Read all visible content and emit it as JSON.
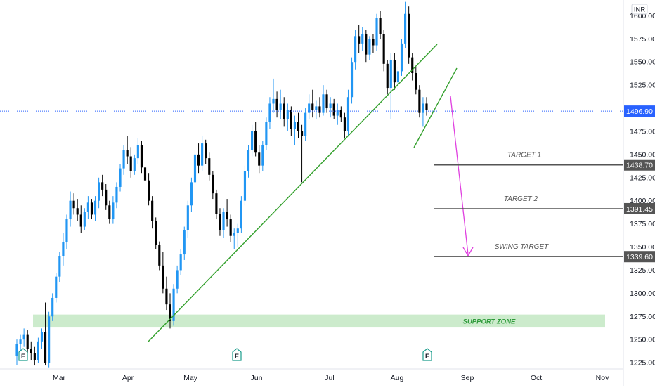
{
  "currency_label": "INR",
  "chart_data": {
    "type": "candlestick",
    "currency": "INR",
    "y_axis": {
      "ticks": [
        "1225.00",
        "1250.00",
        "1275.00",
        "1300.00",
        "1325.00",
        "1350.00",
        "1375.00",
        "1400.00",
        "1425.00",
        "1450.00",
        "1475.00",
        "1500.00",
        "1525.00",
        "1550.00",
        "1575.00",
        "1600.00"
      ],
      "ylim": [
        1219,
        1617
      ]
    },
    "x_axis": {
      "ticks": [
        "Mar",
        "Apr",
        "May",
        "Jun",
        "Jul",
        "Aug",
        "Sep",
        "Oct",
        "Nov"
      ]
    },
    "last_price": {
      "label": "1496.90",
      "value": 1496.9,
      "color": "#2962ff"
    },
    "support_zone": {
      "label": "SUPPORT ZONE",
      "low": 1263,
      "high": 1277,
      "color": "#2e9b3a"
    },
    "targets": [
      {
        "name": "TARGET 1",
        "label": "1438.70",
        "value": 1438.7
      },
      {
        "name": "TARGET 2",
        "label": "1391.45",
        "value": 1391.45
      },
      {
        "name": "SWING TARGET",
        "label": "1339.60",
        "value": 1339.6
      }
    ],
    "colors": {
      "up": "#2196f3",
      "down": "#000000",
      "trendline": "#33a02c",
      "arrow": "#e040e0",
      "target_line": "#555555"
    },
    "earnings_markers": [
      "E",
      "E",
      "E"
    ],
    "candles": [
      {
        "o": 1232,
        "h": 1250,
        "l": 1222,
        "c": 1245
      },
      {
        "o": 1245,
        "h": 1255,
        "l": 1238,
        "c": 1250
      },
      {
        "o": 1250,
        "h": 1262,
        "l": 1242,
        "c": 1255
      },
      {
        "o": 1255,
        "h": 1260,
        "l": 1235,
        "c": 1240
      },
      {
        "o": 1240,
        "h": 1248,
        "l": 1228,
        "c": 1235
      },
      {
        "o": 1235,
        "h": 1242,
        "l": 1222,
        "c": 1228
      },
      {
        "o": 1228,
        "h": 1252,
        "l": 1225,
        "c": 1248
      },
      {
        "o": 1248,
        "h": 1262,
        "l": 1240,
        "c": 1258
      },
      {
        "o": 1258,
        "h": 1290,
        "l": 1222,
        "c": 1225
      },
      {
        "o": 1225,
        "h": 1280,
        "l": 1220,
        "c": 1275
      },
      {
        "o": 1275,
        "h": 1300,
        "l": 1270,
        "c": 1295
      },
      {
        "o": 1295,
        "h": 1322,
        "l": 1290,
        "c": 1318
      },
      {
        "o": 1318,
        "h": 1345,
        "l": 1312,
        "c": 1340
      },
      {
        "o": 1340,
        "h": 1365,
        "l": 1330,
        "c": 1355
      },
      {
        "o": 1355,
        "h": 1385,
        "l": 1348,
        "c": 1380
      },
      {
        "o": 1380,
        "h": 1410,
        "l": 1372,
        "c": 1400
      },
      {
        "o": 1400,
        "h": 1408,
        "l": 1385,
        "c": 1392
      },
      {
        "o": 1392,
        "h": 1402,
        "l": 1378,
        "c": 1385
      },
      {
        "o": 1385,
        "h": 1395,
        "l": 1365,
        "c": 1372
      },
      {
        "o": 1372,
        "h": 1392,
        "l": 1368,
        "c": 1388
      },
      {
        "o": 1388,
        "h": 1405,
        "l": 1380,
        "c": 1398
      },
      {
        "o": 1398,
        "h": 1402,
        "l": 1380,
        "c": 1385
      },
      {
        "o": 1385,
        "h": 1405,
        "l": 1378,
        "c": 1400
      },
      {
        "o": 1400,
        "h": 1425,
        "l": 1392,
        "c": 1420
      },
      {
        "o": 1420,
        "h": 1428,
        "l": 1405,
        "c": 1412
      },
      {
        "o": 1412,
        "h": 1418,
        "l": 1390,
        "c": 1395
      },
      {
        "o": 1395,
        "h": 1400,
        "l": 1375,
        "c": 1380
      },
      {
        "o": 1380,
        "h": 1405,
        "l": 1375,
        "c": 1398
      },
      {
        "o": 1398,
        "h": 1420,
        "l": 1392,
        "c": 1415
      },
      {
        "o": 1415,
        "h": 1440,
        "l": 1410,
        "c": 1435
      },
      {
        "o": 1435,
        "h": 1460,
        "l": 1428,
        "c": 1455
      },
      {
        "o": 1455,
        "h": 1470,
        "l": 1440,
        "c": 1448
      },
      {
        "o": 1448,
        "h": 1458,
        "l": 1425,
        "c": 1432
      },
      {
        "o": 1432,
        "h": 1450,
        "l": 1428,
        "c": 1446
      },
      {
        "o": 1446,
        "h": 1468,
        "l": 1440,
        "c": 1460
      },
      {
        "o": 1460,
        "h": 1465,
        "l": 1430,
        "c": 1436
      },
      {
        "o": 1436,
        "h": 1442,
        "l": 1418,
        "c": 1422
      },
      {
        "o": 1422,
        "h": 1430,
        "l": 1395,
        "c": 1400
      },
      {
        "o": 1400,
        "h": 1405,
        "l": 1370,
        "c": 1378
      },
      {
        "o": 1378,
        "h": 1382,
        "l": 1348,
        "c": 1352
      },
      {
        "o": 1352,
        "h": 1356,
        "l": 1325,
        "c": 1330
      },
      {
        "o": 1330,
        "h": 1345,
        "l": 1300,
        "c": 1305
      },
      {
        "o": 1305,
        "h": 1318,
        "l": 1282,
        "c": 1288
      },
      {
        "o": 1288,
        "h": 1300,
        "l": 1262,
        "c": 1270
      },
      {
        "o": 1270,
        "h": 1310,
        "l": 1265,
        "c": 1305
      },
      {
        "o": 1305,
        "h": 1330,
        "l": 1300,
        "c": 1325
      },
      {
        "o": 1325,
        "h": 1348,
        "l": 1320,
        "c": 1342
      },
      {
        "o": 1342,
        "h": 1372,
        "l": 1336,
        "c": 1368
      },
      {
        "o": 1368,
        "h": 1400,
        "l": 1360,
        "c": 1395
      },
      {
        "o": 1395,
        "h": 1425,
        "l": 1388,
        "c": 1420
      },
      {
        "o": 1420,
        "h": 1455,
        "l": 1412,
        "c": 1450
      },
      {
        "o": 1450,
        "h": 1462,
        "l": 1430,
        "c": 1438
      },
      {
        "o": 1438,
        "h": 1470,
        "l": 1432,
        "c": 1462
      },
      {
        "o": 1462,
        "h": 1466,
        "l": 1440,
        "c": 1446
      },
      {
        "o": 1446,
        "h": 1452,
        "l": 1422,
        "c": 1428
      },
      {
        "o": 1428,
        "h": 1432,
        "l": 1402,
        "c": 1408
      },
      {
        "o": 1408,
        "h": 1412,
        "l": 1380,
        "c": 1386
      },
      {
        "o": 1386,
        "h": 1392,
        "l": 1362,
        "c": 1368
      },
      {
        "o": 1368,
        "h": 1392,
        "l": 1360,
        "c": 1388
      },
      {
        "o": 1388,
        "h": 1402,
        "l": 1372,
        "c": 1380
      },
      {
        "o": 1380,
        "h": 1385,
        "l": 1355,
        "c": 1362
      },
      {
        "o": 1362,
        "h": 1370,
        "l": 1348,
        "c": 1365
      },
      {
        "o": 1365,
        "h": 1375,
        "l": 1350,
        "c": 1370
      },
      {
        "o": 1370,
        "h": 1405,
        "l": 1365,
        "c": 1400
      },
      {
        "o": 1400,
        "h": 1438,
        "l": 1395,
        "c": 1432
      },
      {
        "o": 1432,
        "h": 1460,
        "l": 1425,
        "c": 1455
      },
      {
        "o": 1455,
        "h": 1482,
        "l": 1448,
        "c": 1475
      },
      {
        "o": 1475,
        "h": 1485,
        "l": 1448,
        "c": 1452
      },
      {
        "o": 1452,
        "h": 1460,
        "l": 1430,
        "c": 1438
      },
      {
        "o": 1438,
        "h": 1465,
        "l": 1432,
        "c": 1460
      },
      {
        "o": 1460,
        "h": 1490,
        "l": 1455,
        "c": 1485
      },
      {
        "o": 1485,
        "h": 1512,
        "l": 1478,
        "c": 1505
      },
      {
        "o": 1505,
        "h": 1532,
        "l": 1495,
        "c": 1510
      },
      {
        "o": 1510,
        "h": 1518,
        "l": 1490,
        "c": 1498
      },
      {
        "o": 1498,
        "h": 1520,
        "l": 1488,
        "c": 1505
      },
      {
        "o": 1505,
        "h": 1512,
        "l": 1480,
        "c": 1488
      },
      {
        "o": 1488,
        "h": 1505,
        "l": 1475,
        "c": 1498
      },
      {
        "o": 1498,
        "h": 1502,
        "l": 1470,
        "c": 1478
      },
      {
        "o": 1478,
        "h": 1492,
        "l": 1460,
        "c": 1485
      },
      {
        "o": 1485,
        "h": 1495,
        "l": 1468,
        "c": 1475
      },
      {
        "o": 1475,
        "h": 1482,
        "l": 1420,
        "c": 1470
      },
      {
        "o": 1470,
        "h": 1500,
        "l": 1465,
        "c": 1495
      },
      {
        "o": 1495,
        "h": 1515,
        "l": 1488,
        "c": 1505
      },
      {
        "o": 1505,
        "h": 1520,
        "l": 1490,
        "c": 1498
      },
      {
        "o": 1498,
        "h": 1508,
        "l": 1488,
        "c": 1502
      },
      {
        "o": 1502,
        "h": 1512,
        "l": 1490,
        "c": 1495
      },
      {
        "o": 1495,
        "h": 1525,
        "l": 1492,
        "c": 1515
      },
      {
        "o": 1515,
        "h": 1520,
        "l": 1495,
        "c": 1500
      },
      {
        "o": 1500,
        "h": 1512,
        "l": 1490,
        "c": 1505
      },
      {
        "o": 1505,
        "h": 1510,
        "l": 1488,
        "c": 1492
      },
      {
        "o": 1492,
        "h": 1505,
        "l": 1482,
        "c": 1498
      },
      {
        "o": 1498,
        "h": 1502,
        "l": 1485,
        "c": 1490
      },
      {
        "o": 1490,
        "h": 1495,
        "l": 1468,
        "c": 1475
      },
      {
        "o": 1475,
        "h": 1520,
        "l": 1470,
        "c": 1512
      },
      {
        "o": 1512,
        "h": 1555,
        "l": 1505,
        "c": 1550
      },
      {
        "o": 1550,
        "h": 1585,
        "l": 1542,
        "c": 1578
      },
      {
        "o": 1578,
        "h": 1590,
        "l": 1560,
        "c": 1570
      },
      {
        "o": 1570,
        "h": 1588,
        "l": 1562,
        "c": 1580
      },
      {
        "o": 1580,
        "h": 1585,
        "l": 1550,
        "c": 1558
      },
      {
        "o": 1558,
        "h": 1578,
        "l": 1552,
        "c": 1575
      },
      {
        "o": 1575,
        "h": 1580,
        "l": 1560,
        "c": 1568
      },
      {
        "o": 1568,
        "h": 1602,
        "l": 1562,
        "c": 1598
      },
      {
        "o": 1598,
        "h": 1605,
        "l": 1575,
        "c": 1580
      },
      {
        "o": 1580,
        "h": 1585,
        "l": 1540,
        "c": 1548
      },
      {
        "o": 1548,
        "h": 1552,
        "l": 1515,
        "c": 1522
      },
      {
        "o": 1522,
        "h": 1560,
        "l": 1488,
        "c": 1552
      },
      {
        "o": 1552,
        "h": 1560,
        "l": 1520,
        "c": 1528
      },
      {
        "o": 1528,
        "h": 1545,
        "l": 1520,
        "c": 1540
      },
      {
        "o": 1540,
        "h": 1575,
        "l": 1535,
        "c": 1570
      },
      {
        "o": 1570,
        "h": 1615,
        "l": 1565,
        "c": 1602
      },
      {
        "o": 1602,
        "h": 1610,
        "l": 1548,
        "c": 1555
      },
      {
        "o": 1555,
        "h": 1560,
        "l": 1530,
        "c": 1538
      },
      {
        "o": 1538,
        "h": 1545,
        "l": 1515,
        "c": 1520
      },
      {
        "o": 1520,
        "h": 1525,
        "l": 1490,
        "c": 1495
      },
      {
        "o": 1495,
        "h": 1512,
        "l": 1480,
        "c": 1505
      },
      {
        "o": 1505,
        "h": 1512,
        "l": 1492,
        "c": 1498
      }
    ]
  }
}
